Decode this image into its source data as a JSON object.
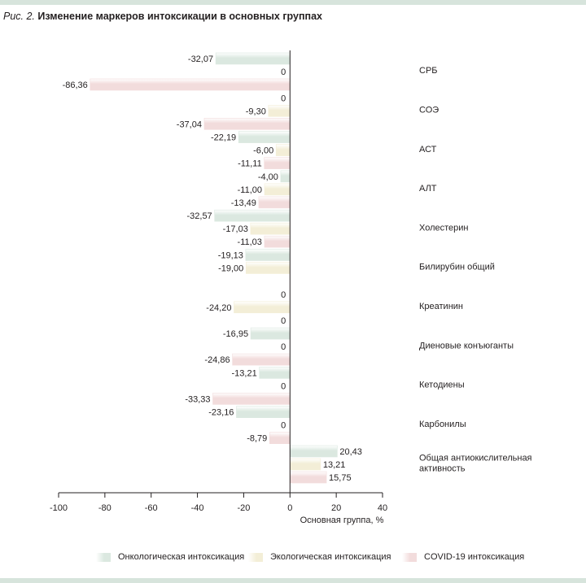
{
  "caption": {
    "figure": "Рис. 2.",
    "title": "Изменение маркеров интоксикации в основных группах"
  },
  "colors": {
    "oncology": "#dbe8e0",
    "ecology": "#f3eed7",
    "covid": "#f2dcdc",
    "band": "#d7e4dc"
  },
  "chart_data": {
    "type": "bar",
    "orientation": "horizontal",
    "title": "Изменение маркеров интоксикации в основных группах",
    "xlabel": "Основная группа, %",
    "ylabel": "",
    "xlim": [
      -100,
      40
    ],
    "xticks": [
      -100,
      -80,
      -60,
      -40,
      -20,
      0,
      20,
      40
    ],
    "categories": [
      "СРБ",
      "СОЭ",
      "АСТ",
      "АЛТ",
      "Холестерин",
      "Билирубин общий",
      "Креатинин",
      "Диеновые конъюганты",
      "Кетодиены",
      "Карбонилы",
      "Общая антиокислительная активность"
    ],
    "series": [
      {
        "key": "oncology",
        "name": "Онкологическая интоксикация",
        "values": [
          -32.07,
          0,
          -22.19,
          -4.0,
          -32.57,
          -19.13,
          0,
          -16.95,
          -13.21,
          -23.16,
          20.43
        ],
        "labels": [
          "-32,07",
          "0",
          "-22,19",
          "-4,00",
          "-32,57",
          "-19,13",
          "0",
          "-16,95",
          "-13,21",
          "-23,16",
          "20,43"
        ]
      },
      {
        "key": "ecology",
        "name": "Экологическая интоксикация",
        "values": [
          0,
          -9.3,
          -6.0,
          -11.0,
          -17.03,
          -19.0,
          -24.2,
          0,
          0,
          0,
          13.21
        ],
        "labels": [
          "0",
          "-9,30",
          "-6,00",
          "-11,00",
          "-17,03",
          "-19,00",
          "-24,20",
          "0",
          "0",
          "0",
          "13,21"
        ]
      },
      {
        "key": "covid",
        "name": "COVID-19 интоксикация",
        "values": [
          -86.36,
          -37.04,
          -11.11,
          -13.49,
          -11.03,
          null,
          0,
          -24.86,
          -33.33,
          -8.79,
          15.75
        ],
        "labels": [
          "-86,36",
          "-37,04",
          "-11,11",
          "-13,49",
          "-11,03",
          null,
          "0",
          "-24,86",
          "-33,33",
          "-8,79",
          "15,75"
        ]
      }
    ],
    "category_display": [
      [
        "СРБ"
      ],
      [
        "СОЭ"
      ],
      [
        "АСТ"
      ],
      [
        "АЛТ"
      ],
      [
        "Холестерин"
      ],
      [
        "Билирубин общий"
      ],
      [
        "Креатинин"
      ],
      [
        "Диеновые конъюганты"
      ],
      [
        "Кетодиены"
      ],
      [
        "Карбонилы"
      ],
      [
        "Общая антиокислительная",
        "активность"
      ]
    ],
    "grid": false,
    "legend_position": "bottom"
  }
}
